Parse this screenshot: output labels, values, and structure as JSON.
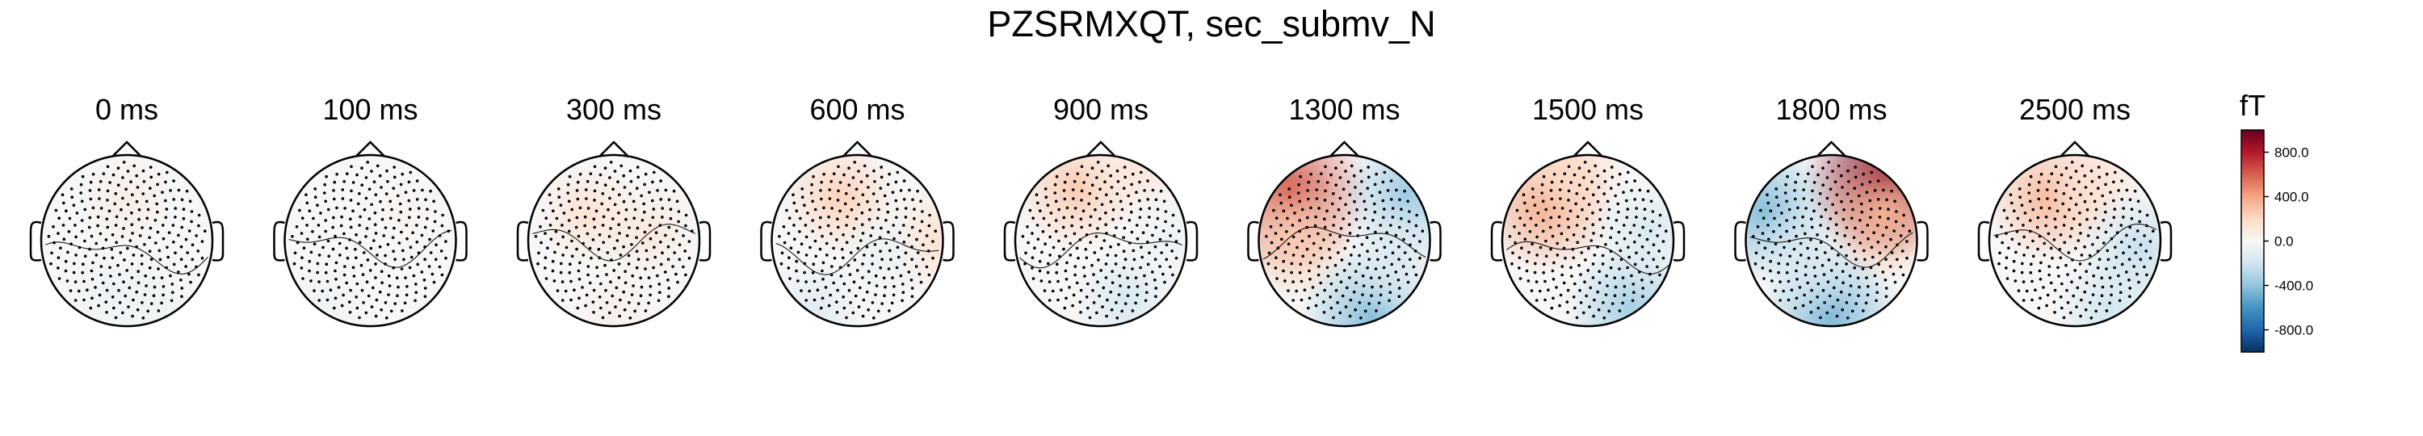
{
  "chart_data": {
    "type": "heatmap",
    "title": "PZSRMXQT, sec_submv_N",
    "subtitle": "",
    "panels": [
      {
        "label": "0 ms",
        "time_ms": 0,
        "blobs": [
          {
            "x": 0.0,
            "y": 0.45,
            "v": 80
          },
          {
            "x": -0.2,
            "y": -0.6,
            "v": -60
          },
          {
            "x": 0.3,
            "y": -0.7,
            "v": -50
          }
        ]
      },
      {
        "label": "100 ms",
        "time_ms": 100,
        "blobs": [
          {
            "x": -0.5,
            "y": -0.7,
            "v": -40
          },
          {
            "x": 0.4,
            "y": 0.3,
            "v": 30
          }
        ]
      },
      {
        "label": "300 ms",
        "time_ms": 300,
        "blobs": [
          {
            "x": -0.3,
            "y": 0.3,
            "v": 150
          },
          {
            "x": 0.4,
            "y": 0.1,
            "v": 110
          },
          {
            "x": 0.0,
            "y": -0.8,
            "v": 60
          }
        ]
      },
      {
        "label": "600 ms",
        "time_ms": 600,
        "blobs": [
          {
            "x": -0.2,
            "y": 0.5,
            "v": 230
          },
          {
            "x": 0.9,
            "y": 0.0,
            "v": 150
          },
          {
            "x": 0.3,
            "y": -0.2,
            "v": -60
          },
          {
            "x": -0.5,
            "y": -0.8,
            "v": -120
          }
        ]
      },
      {
        "label": "900 ms",
        "time_ms": 900,
        "blobs": [
          {
            "x": -0.3,
            "y": 0.6,
            "v": 260
          },
          {
            "x": 0.4,
            "y": 0.8,
            "v": 120
          },
          {
            "x": 0.3,
            "y": -0.7,
            "v": -170
          },
          {
            "x": 0.8,
            "y": 0.0,
            "v": -60
          }
        ]
      },
      {
        "label": "1300 ms",
        "time_ms": 1300,
        "blobs": [
          {
            "x": -0.65,
            "y": 0.55,
            "v": 620
          },
          {
            "x": -0.6,
            "y": 0.0,
            "v": 260
          },
          {
            "x": 0.75,
            "y": 0.55,
            "v": -360
          },
          {
            "x": 0.3,
            "y": -0.9,
            "v": -420
          },
          {
            "x": 0.6,
            "y": -0.2,
            "v": -160
          }
        ]
      },
      {
        "label": "1500 ms",
        "time_ms": 1500,
        "blobs": [
          {
            "x": -0.5,
            "y": 0.4,
            "v": 380
          },
          {
            "x": -0.2,
            "y": 0.8,
            "v": 200
          },
          {
            "x": 0.5,
            "y": -0.8,
            "v": -340
          },
          {
            "x": 0.7,
            "y": 0.1,
            "v": -160
          }
        ]
      },
      {
        "label": "1800 ms",
        "time_ms": 1800,
        "blobs": [
          {
            "x": 0.62,
            "y": 0.72,
            "v": 940
          },
          {
            "x": 0.6,
            "y": 0.3,
            "v": 350
          },
          {
            "x": -0.8,
            "y": 0.35,
            "v": -420
          },
          {
            "x": 0.0,
            "y": -0.9,
            "v": -440
          },
          {
            "x": -0.3,
            "y": -0.2,
            "v": -180
          }
        ]
      },
      {
        "label": "2500 ms",
        "time_ms": 2500,
        "blobs": [
          {
            "x": -0.3,
            "y": 0.5,
            "v": 330
          },
          {
            "x": 0.2,
            "y": 0.7,
            "v": 150
          },
          {
            "x": 0.75,
            "y": -0.1,
            "v": -230
          },
          {
            "x": 0.4,
            "y": -0.8,
            "v": -200
          }
        ]
      }
    ],
    "colorbar": {
      "unit": "fT",
      "vmin": -1000,
      "vmax": 1000,
      "ticks": [
        800.0,
        400.0,
        0.0,
        -400.0,
        -800.0
      ],
      "tick_labels": [
        "800.0",
        "400.0",
        "0.0",
        "-400.0",
        "-800.0"
      ],
      "colormap": "RdBu_r",
      "stops": [
        "#053061",
        "#2166ac",
        "#4393c3",
        "#92c5de",
        "#d1e5f0",
        "#f7f7f7",
        "#fddbc7",
        "#f4a582",
        "#d6604d",
        "#b2182b",
        "#67001f"
      ]
    },
    "colors": {
      "outline": "#000000",
      "sensor": "#000000",
      "contour": "#000000"
    }
  }
}
